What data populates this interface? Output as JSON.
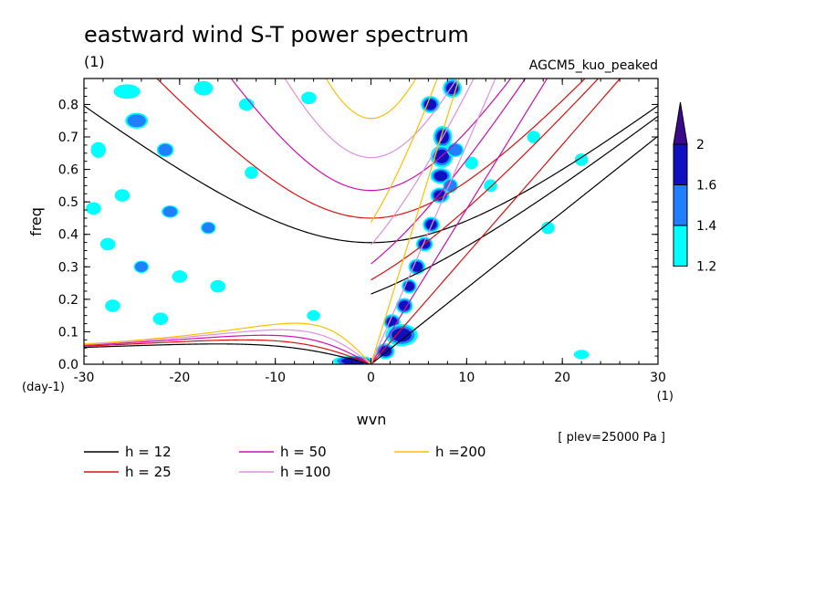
{
  "chart_data": {
    "type": "contour",
    "title": "eastward wind S-T power spectrum",
    "subtitle_left": "(1)",
    "subtitle_right": "AGCM5_kuo_peaked",
    "xlabel": "wvn",
    "ylabel": "freq",
    "x_unit": "(1)",
    "y_unit": "(day-1)",
    "note": "[ plev=25000 Pa ]",
    "xlim": [
      -30,
      30
    ],
    "ylim": [
      0,
      0.88
    ],
    "x_ticks": [
      -30,
      -20,
      -10,
      0,
      10,
      20,
      30
    ],
    "x_tick_labels": [
      "-30",
      "-20",
      "-10",
      "0",
      "10",
      "20",
      "30"
    ],
    "y_ticks": [
      0,
      0.1,
      0.2,
      0.3,
      0.4,
      0.5,
      0.6,
      0.7,
      0.8
    ],
    "y_tick_labels": [
      "0.0",
      "0.1",
      "0.2",
      "0.3",
      "0.4",
      "0.5",
      "0.6",
      "0.7",
      "0.8"
    ],
    "colorbar": {
      "levels": [
        1.2,
        1.4,
        1.6,
        2
      ],
      "labels": [
        "1.2",
        "1.4",
        "1.6",
        "2"
      ],
      "colors": [
        "#00ffff",
        "#1f7fff",
        "#1010c0",
        "#3a0a8a"
      ]
    },
    "dispersion_curves": [
      {
        "label": "h = 12",
        "h": 12,
        "color": "#000000"
      },
      {
        "label": "h = 25",
        "h": 25,
        "color": "#e01010"
      },
      {
        "label": "h = 50",
        "h": 50,
        "color": "#d010b0"
      },
      {
        "label": "h =100",
        "h": 100,
        "color": "#e090e0"
      },
      {
        "label": "h =200",
        "h": 200,
        "color": "#ffc000"
      }
    ],
    "power_blobs": [
      {
        "k": 6.2,
        "f": 0.8,
        "rk": 0.8,
        "rf": 0.022,
        "level": 3
      },
      {
        "k": 7.5,
        "f": 0.7,
        "rk": 0.8,
        "rf": 0.03,
        "level": 3
      },
      {
        "k": 7.4,
        "f": 0.64,
        "rk": 1.0,
        "rf": 0.03,
        "level": 2
      },
      {
        "k": 7.3,
        "f": 0.58,
        "rk": 0.9,
        "rf": 0.02,
        "level": 3
      },
      {
        "k": 7.2,
        "f": 0.52,
        "rk": 0.8,
        "rf": 0.02,
        "level": 3
      },
      {
        "k": 6.3,
        "f": 0.43,
        "rk": 0.7,
        "rf": 0.02,
        "level": 3
      },
      {
        "k": 5.6,
        "f": 0.37,
        "rk": 0.7,
        "rf": 0.018,
        "level": 2
      },
      {
        "k": 4.8,
        "f": 0.3,
        "rk": 0.7,
        "rf": 0.02,
        "level": 2
      },
      {
        "k": 4.0,
        "f": 0.24,
        "rk": 0.6,
        "rf": 0.018,
        "level": 2
      },
      {
        "k": 3.5,
        "f": 0.18,
        "rk": 0.7,
        "rf": 0.02,
        "level": 2
      },
      {
        "k": 2.2,
        "f": 0.13,
        "rk": 0.7,
        "rf": 0.02,
        "level": 2
      },
      {
        "k": 3.2,
        "f": 0.09,
        "rk": 1.5,
        "rf": 0.03,
        "level": 3
      },
      {
        "k": 1.5,
        "f": 0.04,
        "rk": 0.8,
        "rf": 0.02,
        "level": 2
      },
      {
        "k": -1.8,
        "f": 0.01,
        "rk": 2.0,
        "rf": 0.012,
        "level": 2
      },
      {
        "k": 8.5,
        "f": 0.85,
        "rk": 0.8,
        "rf": 0.025,
        "level": 3
      },
      {
        "k": 8.8,
        "f": 0.66,
        "rk": 0.7,
        "rf": 0.018,
        "level": 1
      },
      {
        "k": 8.3,
        "f": 0.55,
        "rk": 0.6,
        "rf": 0.018,
        "level": 1
      },
      {
        "k": 10.5,
        "f": 0.62,
        "rk": 0.5,
        "rf": 0.015,
        "level": 0
      },
      {
        "k": 12.5,
        "f": 0.55,
        "rk": 0.5,
        "rf": 0.015,
        "level": 0
      },
      {
        "k": -24.5,
        "f": 0.75,
        "rk": 1.0,
        "rf": 0.02,
        "level": 1
      },
      {
        "k": -25.5,
        "f": 0.84,
        "rk": 1.2,
        "rf": 0.018,
        "level": 0
      },
      {
        "k": -28.5,
        "f": 0.66,
        "rk": 0.6,
        "rf": 0.02,
        "level": 0
      },
      {
        "k": -21.5,
        "f": 0.66,
        "rk": 0.7,
        "rf": 0.018,
        "level": 1
      },
      {
        "k": -17.5,
        "f": 0.85,
        "rk": 0.8,
        "rf": 0.018,
        "level": 0
      },
      {
        "k": -13.0,
        "f": 0.8,
        "rk": 0.6,
        "rf": 0.015,
        "level": 0
      },
      {
        "k": -6.5,
        "f": 0.82,
        "rk": 0.6,
        "rf": 0.015,
        "level": 0
      },
      {
        "k": -26.0,
        "f": 0.52,
        "rk": 0.6,
        "rf": 0.015,
        "level": 0
      },
      {
        "k": -21.0,
        "f": 0.47,
        "rk": 0.7,
        "rf": 0.015,
        "level": 1
      },
      {
        "k": -17.0,
        "f": 0.42,
        "rk": 0.6,
        "rf": 0.015,
        "level": 1
      },
      {
        "k": -27.5,
        "f": 0.37,
        "rk": 0.6,
        "rf": 0.015,
        "level": 0
      },
      {
        "k": -24.0,
        "f": 0.3,
        "rk": 0.6,
        "rf": 0.015,
        "level": 1
      },
      {
        "k": -20.0,
        "f": 0.27,
        "rk": 0.6,
        "rf": 0.015,
        "level": 0
      },
      {
        "k": -27.0,
        "f": 0.18,
        "rk": 0.6,
        "rf": 0.015,
        "level": 0
      },
      {
        "k": -22.0,
        "f": 0.14,
        "rk": 0.6,
        "rf": 0.015,
        "level": 0
      },
      {
        "k": -16.0,
        "f": 0.24,
        "rk": 0.6,
        "rf": 0.015,
        "level": 0
      },
      {
        "k": -12.5,
        "f": 0.59,
        "rk": 0.5,
        "rf": 0.015,
        "level": 0
      },
      {
        "k": -29.0,
        "f": 0.48,
        "rk": 0.6,
        "rf": 0.015,
        "level": 0
      },
      {
        "k": 18.5,
        "f": 0.42,
        "rk": 0.5,
        "rf": 0.015,
        "level": 0
      },
      {
        "k": 22.0,
        "f": 0.63,
        "rk": 0.5,
        "rf": 0.015,
        "level": 0
      },
      {
        "k": 17.0,
        "f": 0.7,
        "rk": 0.5,
        "rf": 0.015,
        "level": 0
      },
      {
        "k": 22.0,
        "f": 0.03,
        "rk": 0.6,
        "rf": 0.01,
        "level": 0
      },
      {
        "k": -6.0,
        "f": 0.15,
        "rk": 0.5,
        "rf": 0.012,
        "level": 0
      }
    ]
  }
}
